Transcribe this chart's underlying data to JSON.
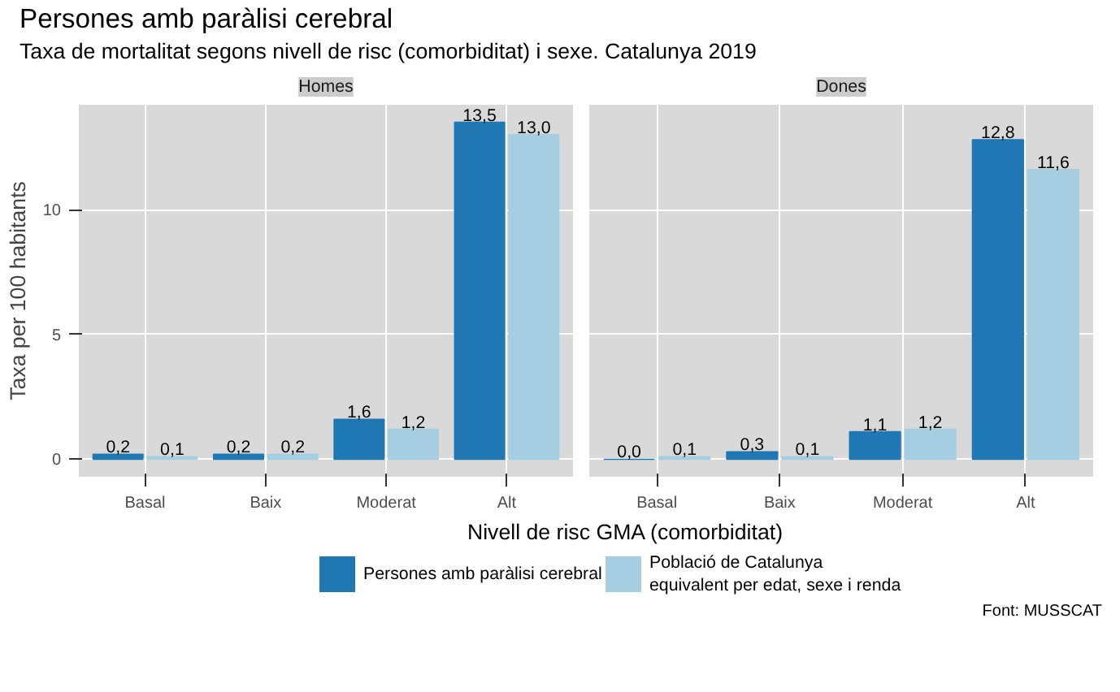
{
  "chart_data": [
    {
      "type": "bar",
      "title": "Persones amb paràlisi cerebral",
      "subtitle": "Taxa de mortalitat segons nivell de risc (comorbiditat) i sexe. Catalunya 2019",
      "xlabel": "Nivell de risc GMA (comorbiditat)",
      "ylabel": "Taxa per 100 habitants",
      "annotations": [
        "Homes"
      ],
      "categories": [
        "Basal",
        "Baix",
        "Moderat",
        "Alt"
      ],
      "ylim": [
        -0.7,
        14.2
      ],
      "yticks": [
        0,
        5,
        10
      ],
      "grid": true,
      "legend": "bottom",
      "series": [
        {
          "name": "Persones amb paràlisi cerebral",
          "color": "#1f78b4",
          "values": [
            0.2,
            0.2,
            1.6,
            13.5
          ],
          "value_labels": [
            "0,2",
            "0,2",
            "1,6",
            "13,5"
          ]
        },
        {
          "name": "Població de Catalunya\nequivalent per edat, sexe i renda",
          "color": "#a6cee3",
          "values": [
            0.1,
            0.2,
            1.2,
            13.0
          ],
          "value_labels": [
            "0,1",
            "0,2",
            "1,2",
            "13,0"
          ]
        }
      ]
    },
    {
      "type": "bar",
      "annotations": [
        "Dones",
        "Font: MUSSCAT"
      ],
      "categories": [
        "Basal",
        "Baix",
        "Moderat",
        "Alt"
      ],
      "ylim": [
        -0.7,
        14.2
      ],
      "yticks": [
        0,
        5,
        10
      ],
      "grid": true,
      "tick_labels": "x",
      "series": [
        {
          "color": "#1f78b4",
          "values": [
            0.0,
            0.3,
            1.1,
            12.8
          ],
          "value_labels": [
            "0,0",
            "0,3",
            "1,1",
            "12,8"
          ]
        },
        {
          "color": "#a6cee3",
          "values": [
            0.1,
            0.1,
            1.2,
            11.6
          ],
          "value_labels": [
            "0,1",
            "0,1",
            "1,2",
            "11,6"
          ]
        }
      ]
    }
  ]
}
